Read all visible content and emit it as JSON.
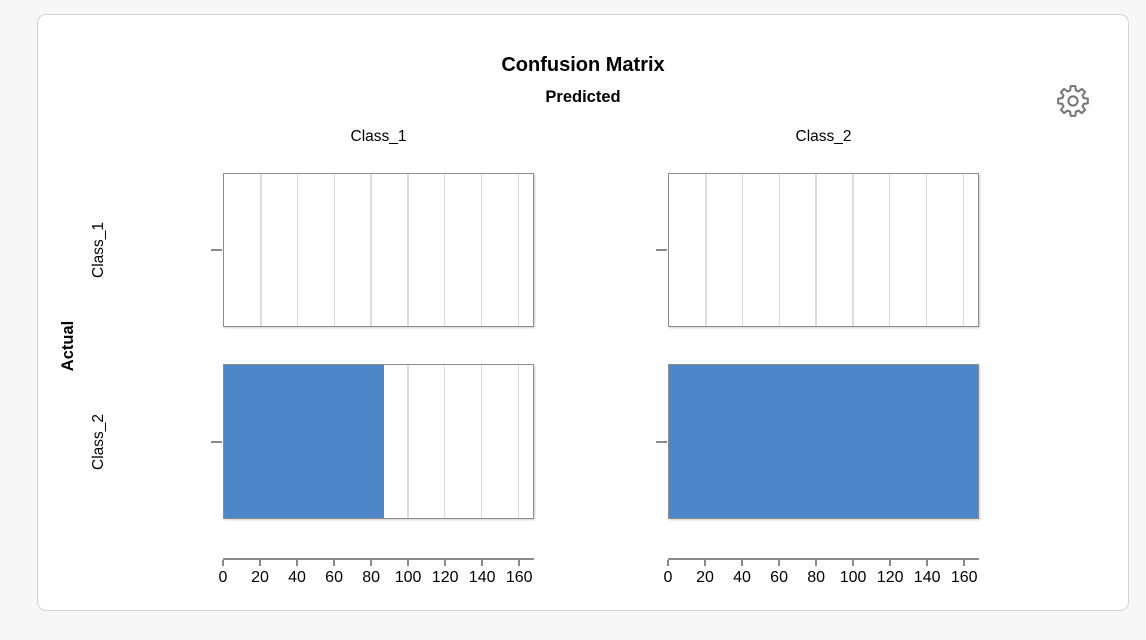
{
  "card": {
    "settings_icon": "gear-icon"
  },
  "chart_data": {
    "type": "bar",
    "orientation": "horizontal",
    "title": "Confusion Matrix",
    "column_axis_title": "Predicted",
    "row_axis_title": "Actual",
    "columns": [
      "Class_1",
      "Class_2"
    ],
    "rows": [
      "Class_1",
      "Class_2"
    ],
    "matrix": [
      {
        "actual": "Class_1",
        "values": [
          0,
          0
        ]
      },
      {
        "actual": "Class_2",
        "values": [
          87,
          168
        ]
      }
    ],
    "x_ticks": [
      0,
      20,
      40,
      60,
      80,
      100,
      120,
      140,
      160
    ],
    "xlim": [
      0,
      168
    ],
    "bar_color": "#4d87c9",
    "grid": true,
    "legend": "none"
  }
}
